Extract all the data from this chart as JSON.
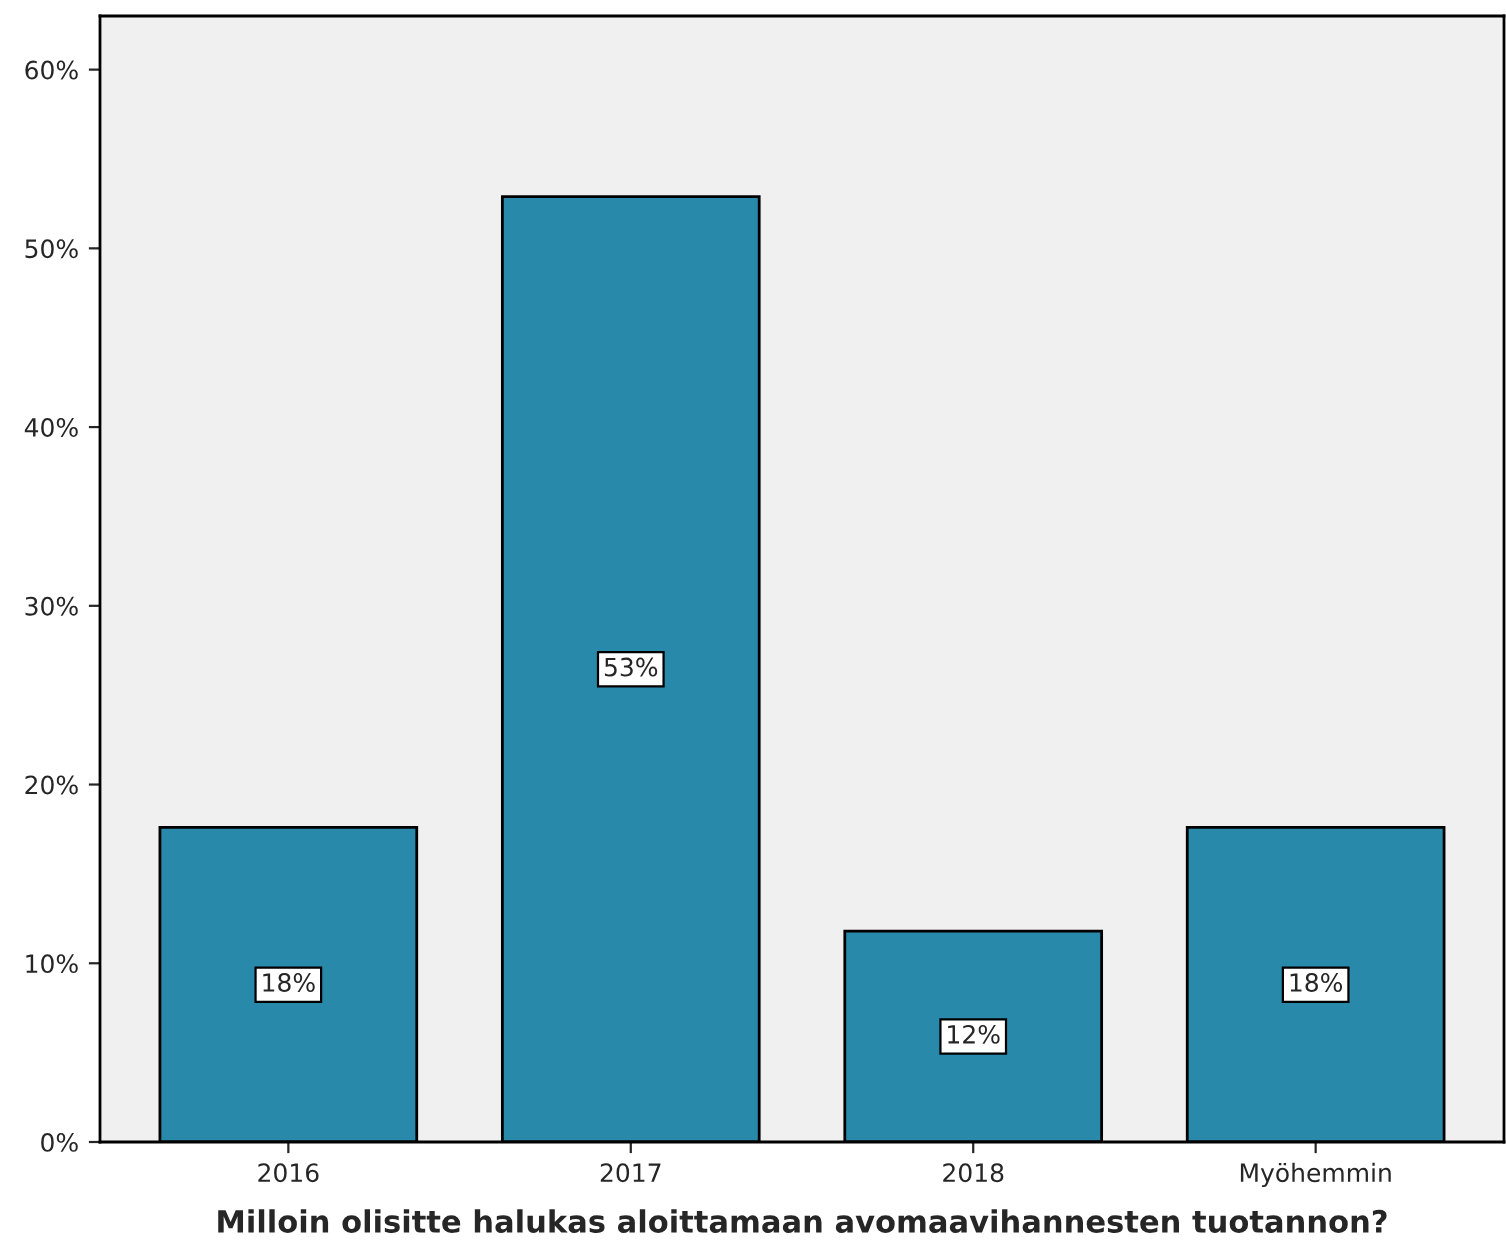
{
  "chart_data": {
    "type": "bar",
    "xlabel": "Milloin olisitte halukas aloittamaan avomaavihannesten tuotannon?",
    "categories": [
      "2016",
      "2017",
      "2018",
      "Myöhemmin"
    ],
    "values": [
      17.6,
      52.9,
      11.8,
      17.6
    ],
    "value_labels": [
      "18%",
      "53%",
      "12%",
      "18%"
    ],
    "color": "#2889ab",
    "ylim": [
      0,
      63
    ],
    "yticks": [
      {
        "value": 0,
        "label": "0%"
      },
      {
        "value": 10,
        "label": "10%"
      },
      {
        "value": 20,
        "label": "20%"
      },
      {
        "value": 30,
        "label": "30%"
      },
      {
        "value": 40,
        "label": "40%"
      },
      {
        "value": 50,
        "label": "50%"
      },
      {
        "value": 60,
        "label": "60%"
      }
    ],
    "grid": false
  }
}
